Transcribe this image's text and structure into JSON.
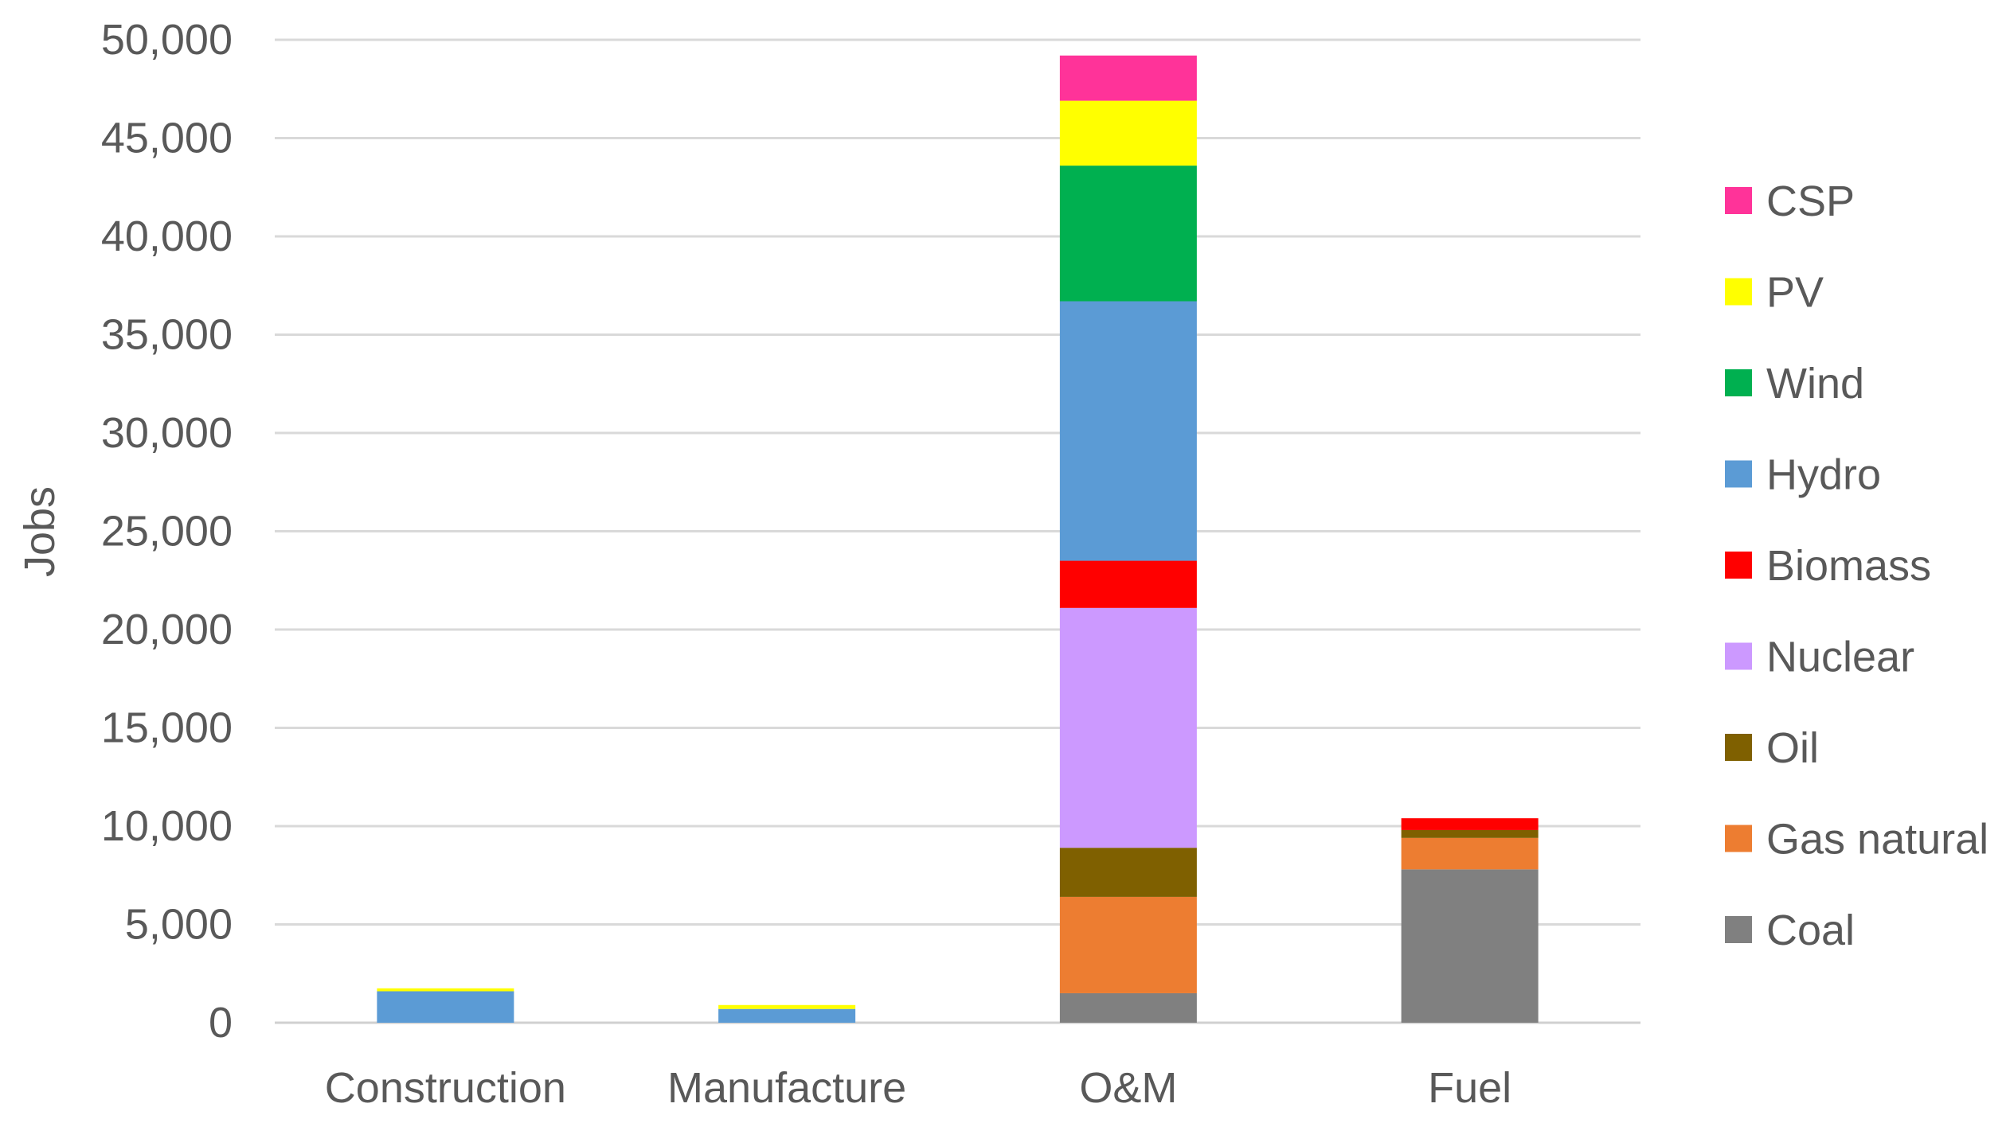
{
  "chart_data": {
    "type": "bar",
    "stacked": true,
    "categories": [
      "Construction",
      "Manufacture",
      "O&M",
      "Fuel"
    ],
    "ylabel": "Jobs",
    "xlabel": "",
    "title": "",
    "ylim": [
      0,
      50000
    ],
    "yticks": [
      "0",
      "5,000",
      "10,000",
      "15,000",
      "20,000",
      "25,000",
      "30,000",
      "35,000",
      "40,000",
      "45,000",
      "50,000"
    ],
    "ytick_values": [
      0,
      5000,
      10000,
      15000,
      20000,
      25000,
      30000,
      35000,
      40000,
      45000,
      50000
    ],
    "grid": true,
    "legend_position": "right",
    "series": [
      {
        "name": "Coal",
        "color": "#808080",
        "values": [
          0,
          0,
          1500,
          7800
        ]
      },
      {
        "name": "Gas natural",
        "color": "#ED7D31",
        "values": [
          0,
          0,
          4900,
          1600
        ]
      },
      {
        "name": "Oil",
        "color": "#7F6000",
        "values": [
          0,
          0,
          2500,
          400
        ]
      },
      {
        "name": "Nuclear",
        "color": "#CC99FF",
        "values": [
          0,
          0,
          12200,
          0
        ]
      },
      {
        "name": "Biomass",
        "color": "#FF0000",
        "values": [
          0,
          0,
          2400,
          600
        ]
      },
      {
        "name": "Hydro",
        "color": "#5B9BD5",
        "values": [
          1600,
          700,
          13200,
          0
        ]
      },
      {
        "name": "Wind",
        "color": "#00B050",
        "values": [
          0,
          0,
          6900,
          0
        ]
      },
      {
        "name": "PV",
        "color": "#FFFF00",
        "values": [
          150,
          200,
          3300,
          0
        ]
      },
      {
        "name": "CSP",
        "color": "#FF3399",
        "values": [
          0,
          0,
          2300,
          0
        ]
      }
    ]
  }
}
